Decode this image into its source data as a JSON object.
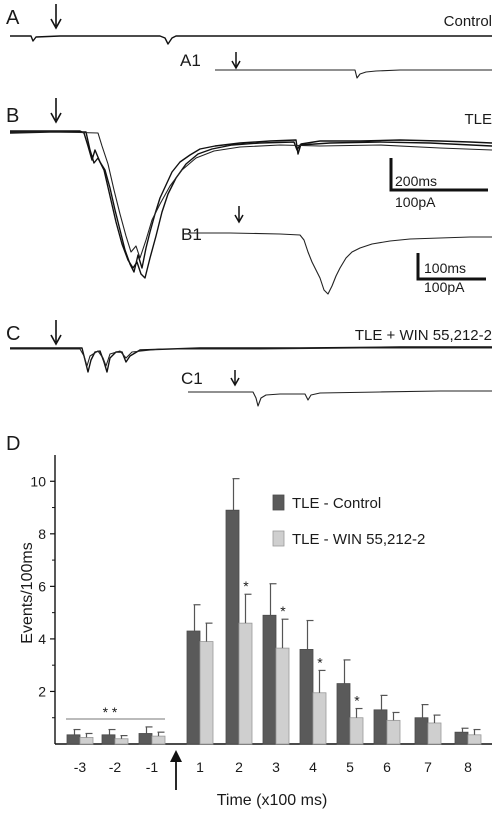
{
  "panels": {
    "A": {
      "letter": "A",
      "condition": "Control",
      "sub_letter": "A1"
    },
    "B": {
      "letter": "B",
      "condition": "TLE",
      "sub_letter": "B1",
      "scale_main": {
        "time": "200ms",
        "amp": "100pA"
      },
      "scale_sub": {
        "time": "100ms",
        "amp": "100pA"
      }
    },
    "C": {
      "letter": "C",
      "condition": "TLE + WIN 55,212-2",
      "sub_letter": "C1"
    },
    "D": {
      "letter": "D"
    }
  },
  "colors": {
    "control_bar": "#5a5a5a",
    "win_bar": "#cfcfcf",
    "trace": "#111111"
  },
  "chart_data": {
    "type": "bar",
    "xlabel": "Time (x100 ms)",
    "ylabel": "Events/100ms",
    "ylim": [
      0,
      11
    ],
    "yticks": [
      2,
      4,
      6,
      8,
      10
    ],
    "categories": [
      "-3",
      "-2",
      "-1",
      "1",
      "2",
      "3",
      "4",
      "5",
      "6",
      "7",
      "8"
    ],
    "series": [
      {
        "name": "TLE - Control",
        "values": [
          0.35,
          0.35,
          0.4,
          4.3,
          8.9,
          4.9,
          3.6,
          2.3,
          1.3,
          1.0,
          0.45
        ],
        "errors": [
          0.2,
          0.2,
          0.25,
          1.0,
          1.2,
          1.2,
          1.1,
          0.9,
          0.55,
          0.5,
          0.15
        ]
      },
      {
        "name": "TLE - WIN 55,212-2",
        "values": [
          0.25,
          0.2,
          0.3,
          3.9,
          4.6,
          3.65,
          1.95,
          1.0,
          0.9,
          0.8,
          0.35
        ],
        "errors": [
          0.15,
          0.12,
          0.15,
          0.7,
          1.1,
          1.1,
          0.85,
          0.35,
          0.3,
          0.3,
          0.2
        ]
      }
    ],
    "significance": [
      {
        "category": "2",
        "label": "*"
      },
      {
        "category": "3",
        "label": "*"
      },
      {
        "category": "4",
        "label": "*"
      },
      {
        "category": "5",
        "label": "*"
      }
    ],
    "baseline_annotation": "* *",
    "legend_placement": "top-right",
    "stimulus_marker": "between -1 and 1"
  }
}
